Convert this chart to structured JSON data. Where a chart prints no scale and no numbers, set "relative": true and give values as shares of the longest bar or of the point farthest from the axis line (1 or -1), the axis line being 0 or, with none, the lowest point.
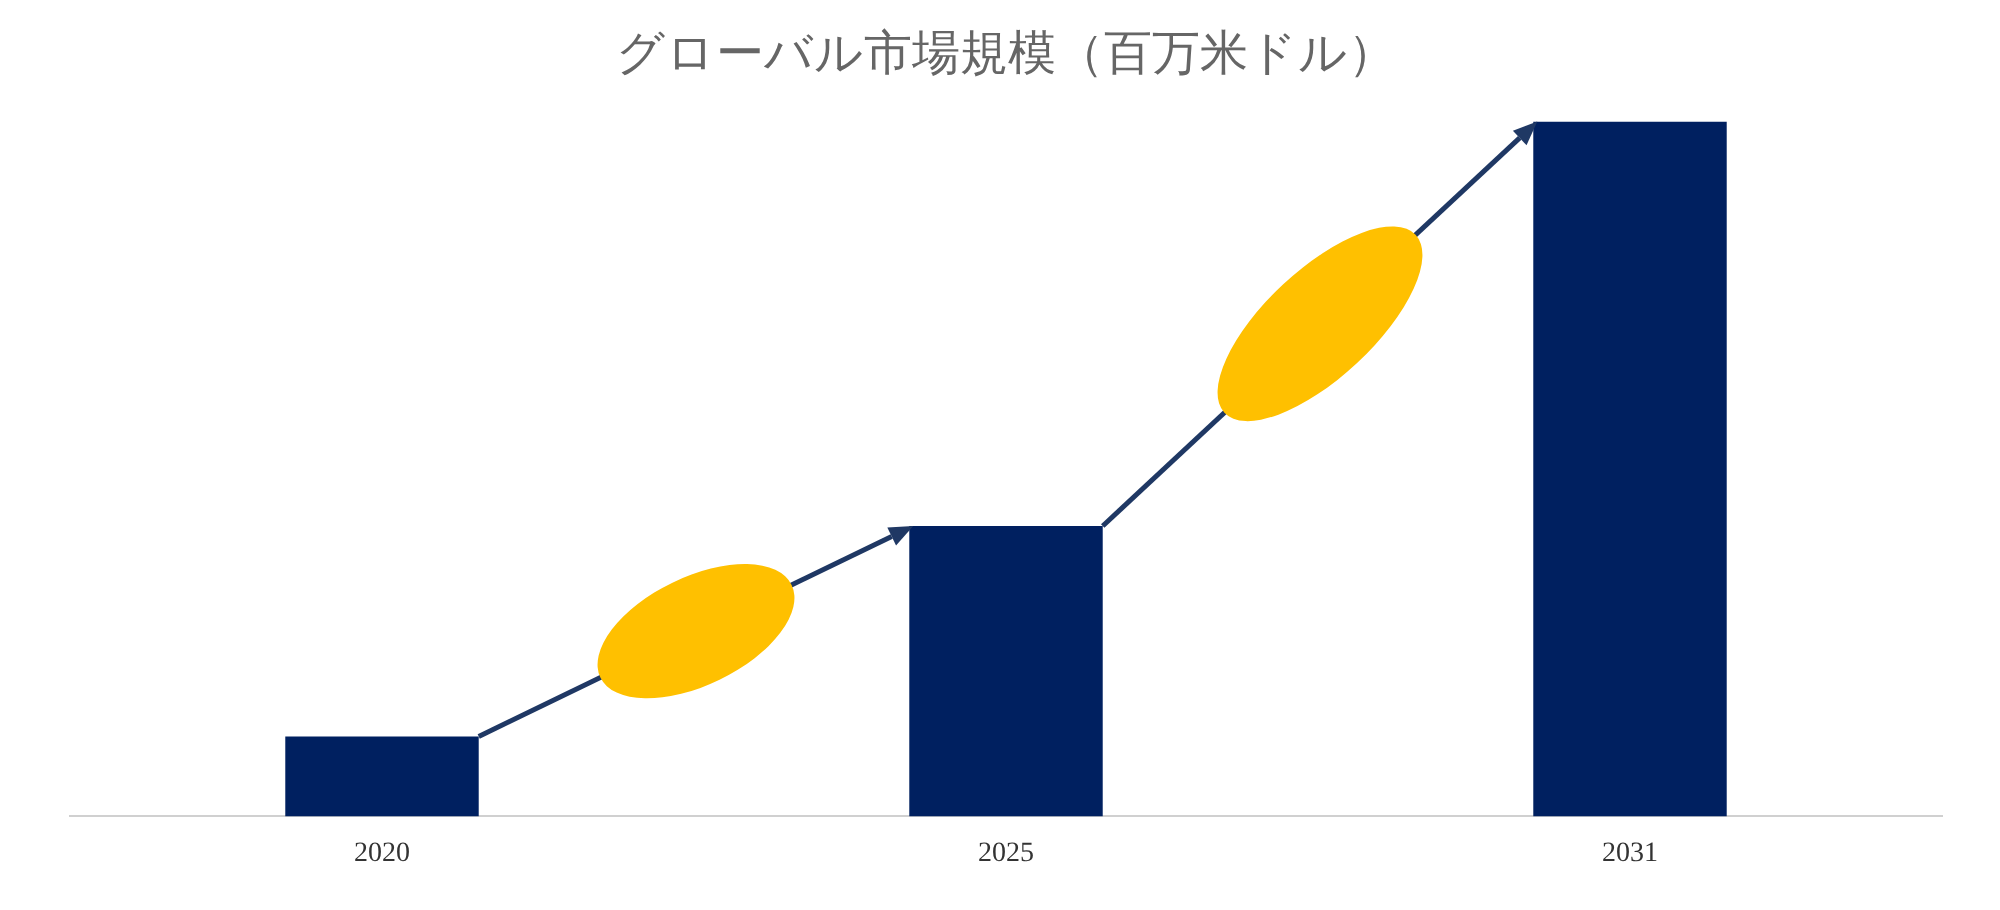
{
  "chart_data": {
    "type": "bar",
    "title": "グローバル市場規模（百万米ドル）",
    "categories": [
      "2020",
      "2025",
      "2031"
    ],
    "values": [
      0.115,
      0.418,
      1
    ],
    "color": "#002060",
    "relative": true,
    "grid": false,
    "legend": false
  }
}
